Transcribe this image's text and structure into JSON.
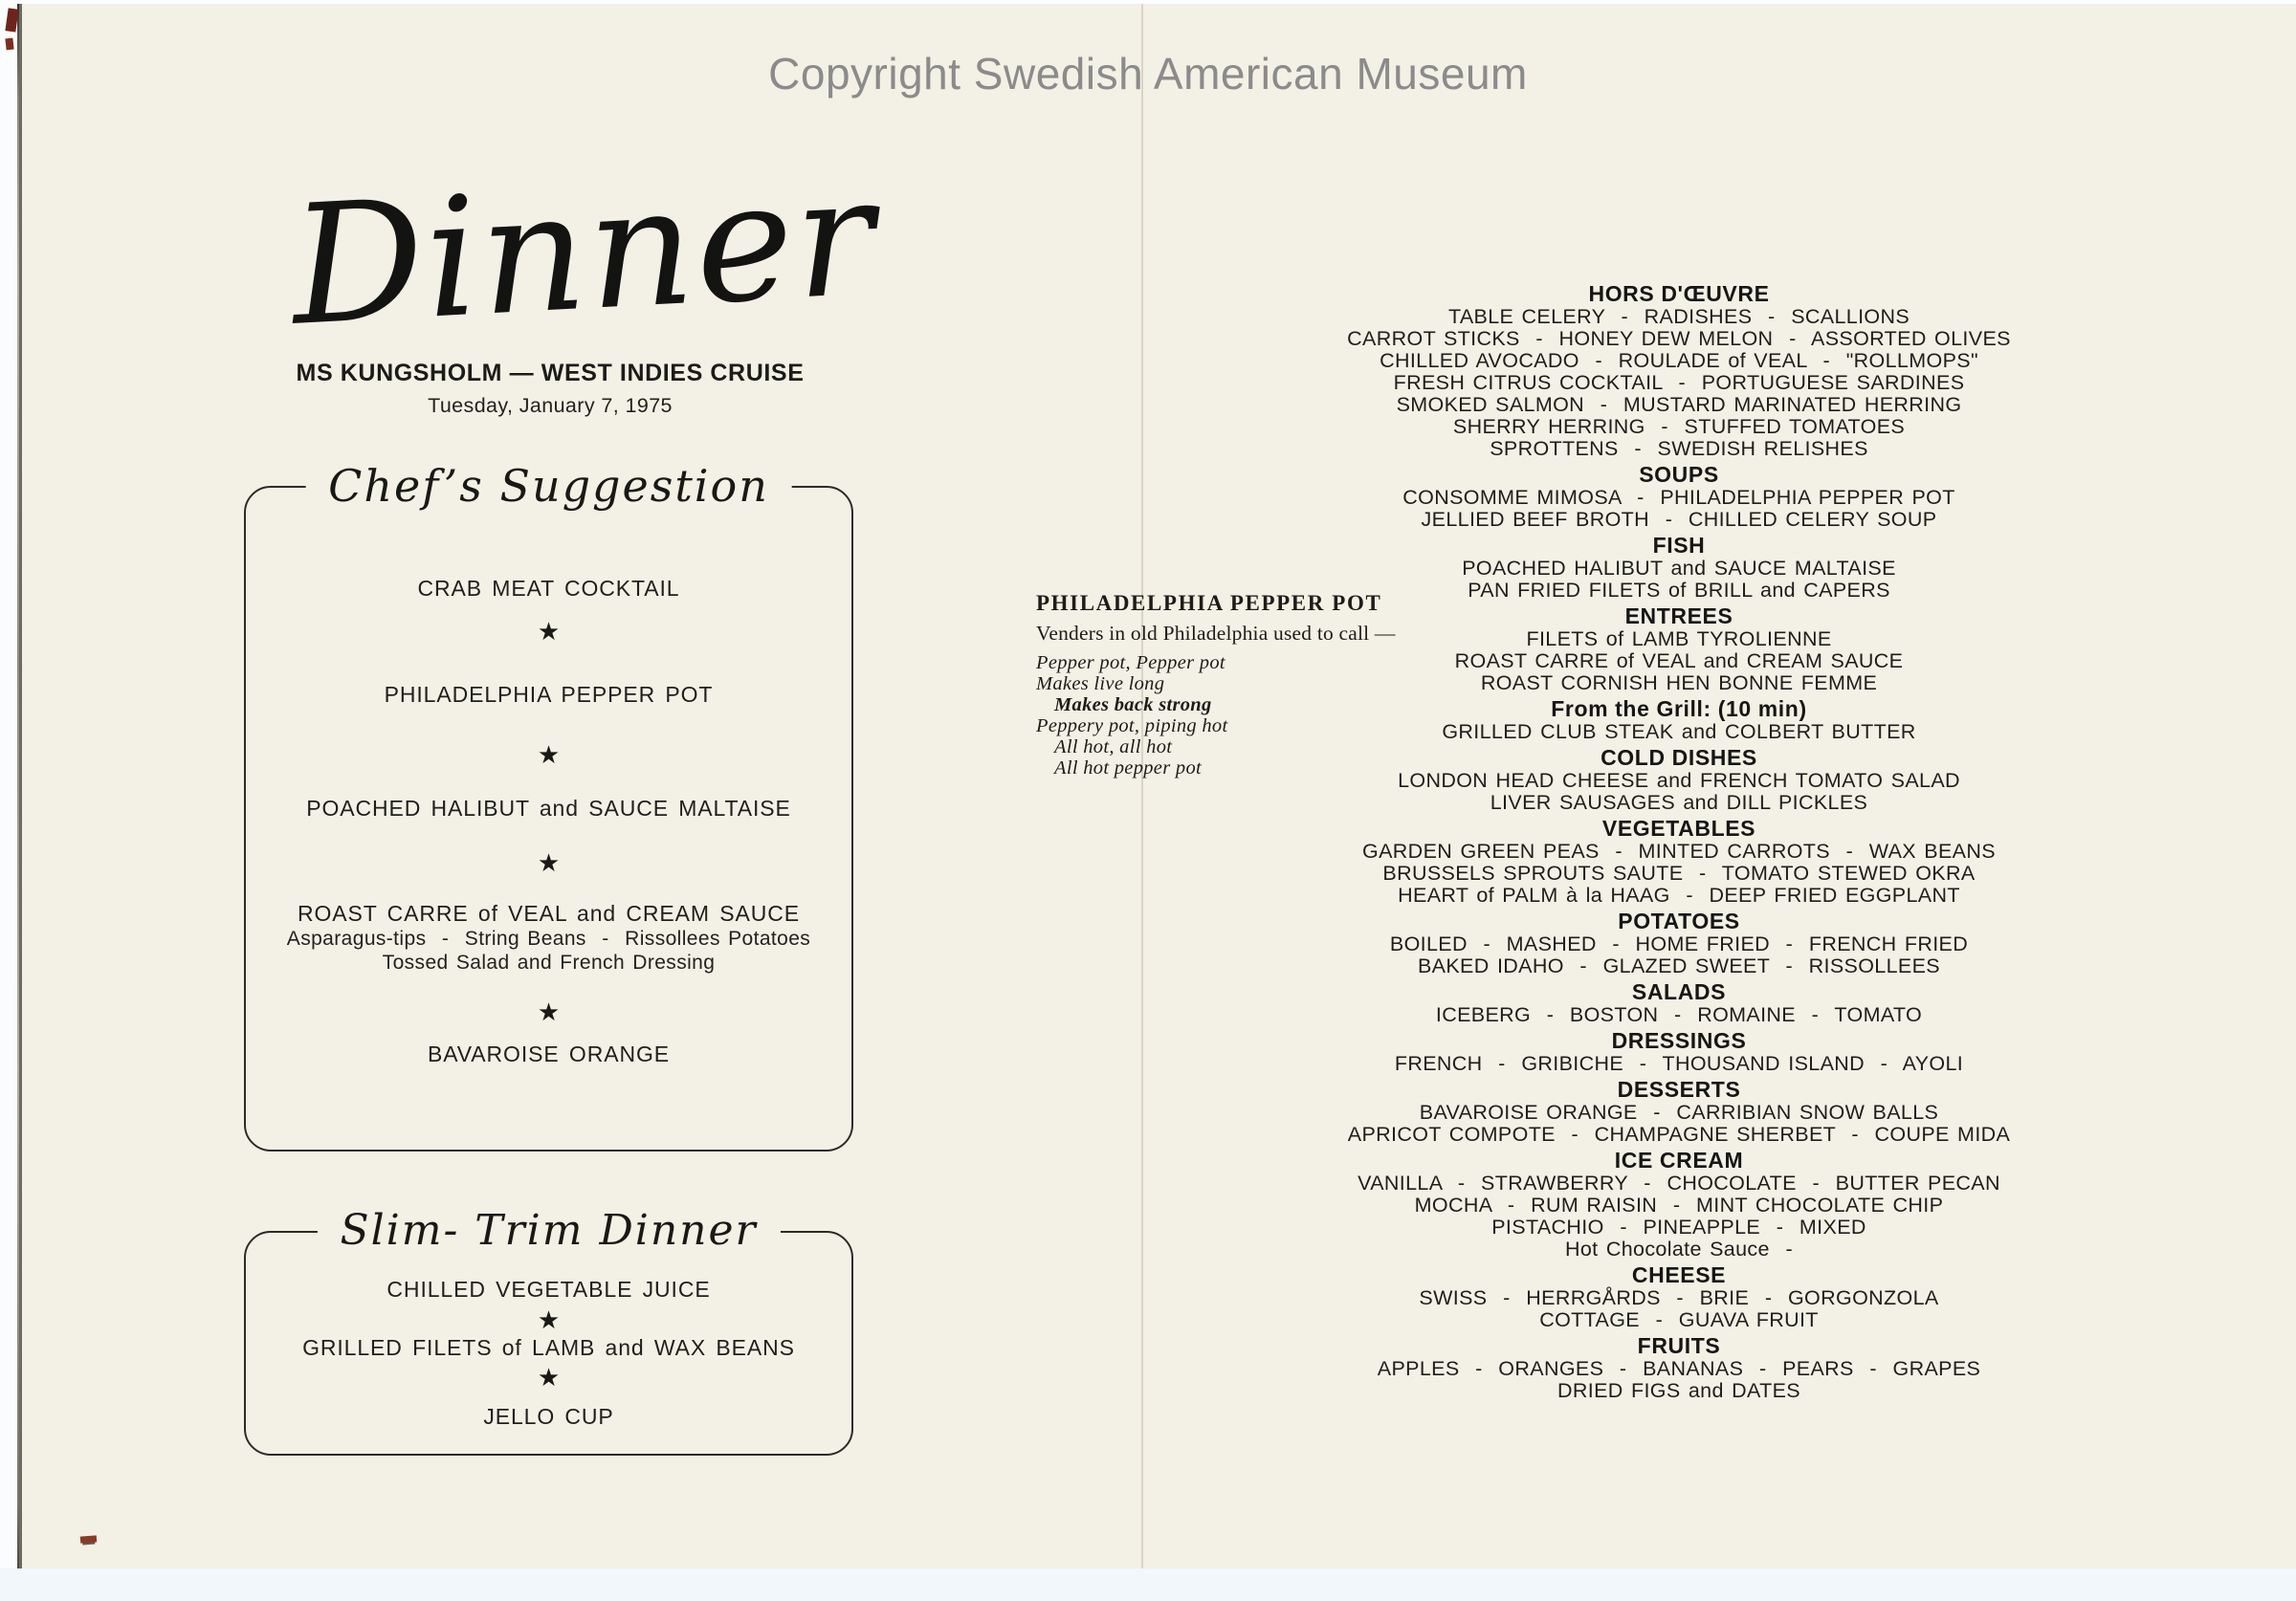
{
  "colors": {
    "paper": "#f3f0e6",
    "ink": "#1e1e1b",
    "copyright_gray": "#8b8b8b",
    "scan_background": "#f2f7fb"
  },
  "glyphs": {
    "star": "★"
  },
  "copyright_text": "Copyright Swedish American Museum",
  "left_page": {
    "script_title": "Dinner",
    "subtitle": "MS KUNGSHOLM — WEST INDIES CRUISE",
    "date_line": "Tuesday, January 7, 1975",
    "chefs_box": {
      "title": "Chef’s Suggestion",
      "items": [
        "CRAB MEAT COCKTAIL",
        "PHILADELPHIA PEPPER POT",
        "POACHED HALIBUT and SAUCE MALTAISE",
        "ROAST CARRE of VEAL and CREAM SAUCE",
        "BAVAROISE ORANGE"
      ],
      "veal_sides": [
        "Asparagus-tips  -  String Beans  -  Rissollees Potatoes",
        "Tossed Salad and French Dressing"
      ]
    },
    "slim_box": {
      "title": "Slim- Trim Dinner",
      "items": [
        "CHILLED VEGETABLE JUICE",
        "GRILLED FILETS of LAMB and WAX BEANS",
        "JELLO CUP"
      ]
    }
  },
  "center_note": {
    "heading": "PHILADELPHIA PEPPER POT",
    "intro": "Venders in old Philadelphia used to call —",
    "verse": [
      {
        "text": "Pepper pot, Pepper pot"
      },
      {
        "text": "Makes live long"
      },
      {
        "text": "Makes back strong"
      },
      {
        "text": "Peppery pot, piping hot"
      },
      {
        "text": "All hot, all hot"
      },
      {
        "text": "All hot pepper pot"
      }
    ]
  },
  "right_page": {
    "sections": [
      {
        "heading": "HORS D'ŒUVRE",
        "lines": [
          "TABLE CELERY  -  RADISHES  -  SCALLIONS",
          "CARROT STICKS  -  HONEY DEW MELON  -  ASSORTED OLIVES",
          "CHILLED AVOCADO  -  ROULADE of VEAL  -  \"ROLLMOPS\"",
          "FRESH CITRUS COCKTAIL  -  PORTUGUESE SARDINES",
          "SMOKED SALMON  -  MUSTARD MARINATED HERRING",
          "SHERRY HERRING  -  STUFFED TOMATOES",
          "SPROTTENS  -  SWEDISH RELISHES"
        ]
      },
      {
        "heading": "SOUPS",
        "lines": [
          "CONSOMME MIMOSA  -  PHILADELPHIA PEPPER POT",
          "JELLIED BEEF BROTH  -  CHILLED CELERY SOUP"
        ]
      },
      {
        "heading": "FISH",
        "lines": [
          "POACHED HALIBUT and SAUCE MALTAISE",
          "PAN FRIED FILETS of BRILL and CAPERS"
        ]
      },
      {
        "heading": "ENTREES",
        "lines": [
          "FILETS of LAMB TYROLIENNE",
          "ROAST CARRE of VEAL and CREAM SAUCE",
          "ROAST CORNISH HEN BONNE FEMME"
        ]
      },
      {
        "heading": "From the Grill: (10 min)",
        "lines": [
          "GRILLED CLUB STEAK and COLBERT BUTTER"
        ]
      },
      {
        "heading": "COLD DISHES",
        "lines": [
          "LONDON HEAD CHEESE and FRENCH TOMATO SALAD",
          "LIVER SAUSAGES and DILL PICKLES"
        ]
      },
      {
        "heading": "VEGETABLES",
        "lines": [
          "GARDEN GREEN PEAS  -  MINTED CARROTS  -  WAX BEANS",
          "BRUSSELS SPROUTS SAUTE  -  TOMATO STEWED OKRA",
          "HEART of PALM à la HAAG  -  DEEP FRIED EGGPLANT"
        ]
      },
      {
        "heading": "POTATOES",
        "lines": [
          "BOILED  -  MASHED  -  HOME FRIED  -  FRENCH FRIED",
          "BAKED IDAHO  -  GLAZED SWEET  -  RISSOLLEES"
        ]
      },
      {
        "heading": "SALADS",
        "lines": [
          "ICEBERG  -  BOSTON  -  ROMAINE  -  TOMATO"
        ]
      },
      {
        "heading": "DRESSINGS",
        "lines": [
          "FRENCH  -  GRIBICHE  -  THOUSAND ISLAND  -  AYOLI"
        ]
      },
      {
        "heading": "DESSERTS",
        "lines": [
          "BAVAROISE ORANGE  -  CARRIBIAN SNOW BALLS",
          "APRICOT COMPOTE  -  CHAMPAGNE SHERBET  -  COUPE MIDA"
        ]
      },
      {
        "heading": "ICE CREAM",
        "lines": [
          "VANILLA  -  STRAWBERRY  -  CHOCOLATE  -  BUTTER PECAN",
          "MOCHA  -  RUM RAISIN  -  MINT CHOCOLATE CHIP",
          "PISTACHIO  -  PINEAPPLE  -  MIXED",
          "Hot Chocolate Sauce  -"
        ]
      },
      {
        "heading": "CHEESE",
        "lines": [
          "SWISS  -  HERRGÅRDS  -  BRIE  -  GORGONZOLA",
          "COTTAGE  -  GUAVA FRUIT"
        ]
      },
      {
        "heading": "FRUITS",
        "lines": [
          "APPLES  -  ORANGES  -  BANANAS  -  PEARS  -  GRAPES",
          "DRIED FIGS and DATES"
        ]
      }
    ]
  }
}
